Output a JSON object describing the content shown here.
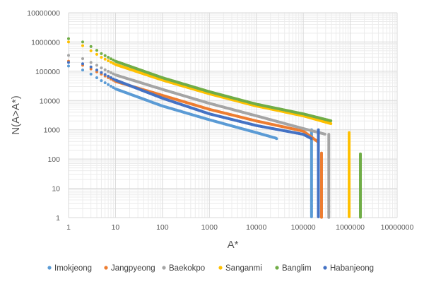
{
  "chart_data": {
    "type": "scatter",
    "title": "",
    "xlabel": "A*",
    "ylabel": "N(A>A*)",
    "x_scale": "log",
    "y_scale": "log",
    "xlim": [
      1,
      10000000
    ],
    "ylim": [
      1,
      10000000
    ],
    "x_ticks": [
      "1",
      "10",
      "100",
      "1000",
      "10000",
      "100000",
      "1000000",
      "10000000"
    ],
    "y_ticks": [
      "1",
      "10",
      "100",
      "1000",
      "10000",
      "100000",
      "1000000",
      "10000000"
    ],
    "grid": true,
    "legend_position": "bottom",
    "series": [
      {
        "name": "Imokjeong",
        "color": "#5B9BD5",
        "x": [
          1,
          2,
          3,
          4,
          5,
          10,
          100,
          1000,
          10000,
          26000,
          28000
        ],
        "y": [
          150000,
          110000,
          80000,
          60000,
          48000,
          25000,
          6500,
          2200,
          800,
          520,
          480
        ],
        "tail_x": 150000,
        "tail_y": [
          1000,
          1
        ]
      },
      {
        "name": "Jangpyeong",
        "color": "#ED7D31",
        "x": [
          1,
          2,
          3,
          4,
          5,
          10,
          100,
          1000,
          10000,
          100000,
          200000
        ],
        "y": [
          220000,
          160000,
          120000,
          95000,
          80000,
          45000,
          15000,
          5000,
          2000,
          900,
          400
        ],
        "tail_x": 245000,
        "tail_y": [
          160,
          1
        ]
      },
      {
        "name": "Baekokpo",
        "color": "#A5A5A5",
        "x": [
          1,
          2,
          3,
          4,
          5,
          10,
          100,
          1000,
          10000,
          100000,
          300000
        ],
        "y": [
          350000,
          270000,
          200000,
          160000,
          130000,
          75000,
          24000,
          8000,
          3000,
          1100,
          700
        ],
        "tail_x": 350000,
        "tail_y": [
          700,
          1
        ]
      },
      {
        "name": "Sanganmi",
        "color": "#FFC000",
        "x": [
          1,
          2,
          3,
          4,
          5,
          10,
          100,
          1000,
          10000,
          100000,
          400000
        ],
        "y": [
          1000000,
          750000,
          500000,
          380000,
          300000,
          170000,
          50000,
          17000,
          6500,
          3000,
          1600
        ],
        "tail_x": 950000,
        "tail_y": [
          800,
          1
        ]
      },
      {
        "name": "Banglim",
        "color": "#70AD47",
        "x": [
          1,
          2,
          3,
          4,
          5,
          10,
          100,
          1000,
          10000,
          100000,
          400000
        ],
        "y": [
          1300000,
          1000000,
          700000,
          520000,
          400000,
          220000,
          60000,
          20000,
          7500,
          3500,
          2000
        ],
        "tail_x": 1650000,
        "tail_y": [
          150,
          1
        ]
      },
      {
        "name": "Habanjeong",
        "color": "#4472C4",
        "x": [
          1,
          2,
          3,
          4,
          5,
          10,
          100,
          1000,
          10000,
          100000,
          150000
        ],
        "y": [
          200000,
          180000,
          140000,
          110000,
          90000,
          50000,
          12000,
          3500,
          1400,
          700,
          500
        ],
        "tail_x": 210000,
        "tail_y": [
          1000,
          1
        ]
      }
    ]
  }
}
